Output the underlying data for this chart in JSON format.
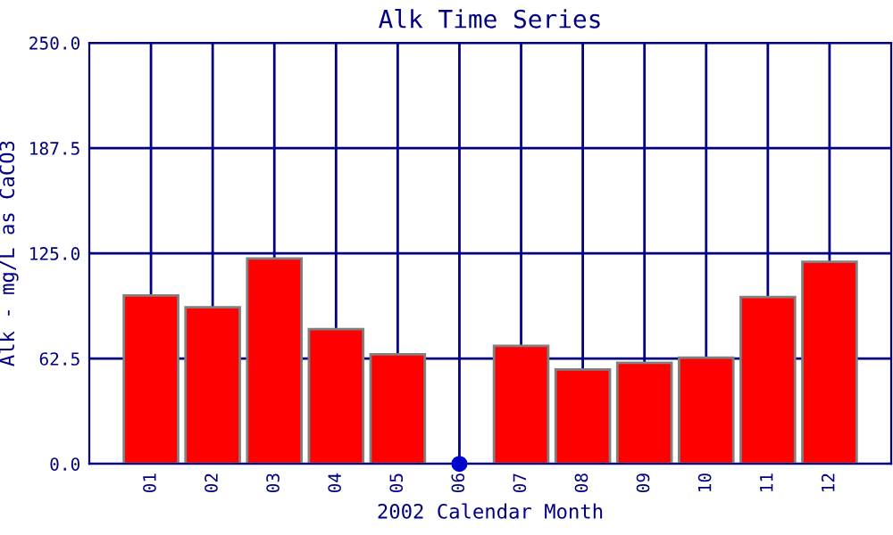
{
  "chart_data": {
    "type": "bar",
    "title": "Alk Time Series",
    "xlabel": "2002 Calendar Month",
    "ylabel": "Alk - mg/L as CaCO3",
    "categories": [
      "01",
      "02",
      "03",
      "04",
      "05",
      "06",
      "07",
      "08",
      "09",
      "10",
      "11",
      "12"
    ],
    "series": [
      {
        "color": "#ff0000",
        "values": [
          100,
          93,
          122,
          80,
          65,
          null,
          70,
          56,
          60,
          63,
          99,
          120
        ]
      },
      {
        "type": "scatter",
        "color": "#0000cc",
        "x": [
          "06"
        ],
        "values": [
          0
        ],
        "marker": "circle"
      }
    ],
    "ylim": [
      0,
      250
    ],
    "yticks": [
      {
        "value": 0,
        "label": "0.0"
      },
      {
        "value": 62.5,
        "label": "62.5"
      },
      {
        "value": 125,
        "label": "125.0"
      },
      {
        "value": 187.5,
        "label": "187.5"
      },
      {
        "value": 250,
        "label": "250.0"
      }
    ],
    "grid": true
  }
}
